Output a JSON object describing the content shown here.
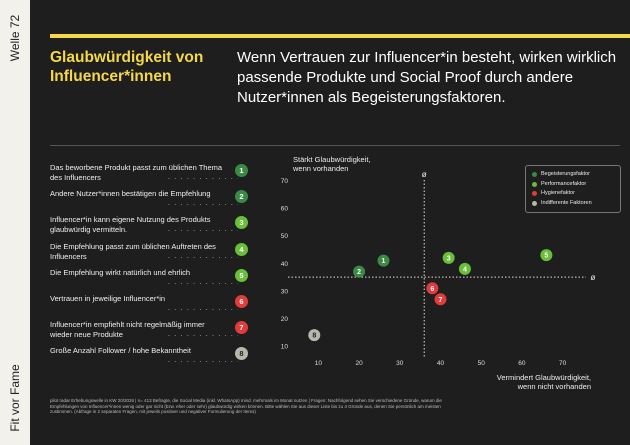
{
  "side": {
    "top_label": "Welle 72",
    "bottom_label": "Fit vor Fame"
  },
  "header": {
    "title": "Glaubwürdigkeit von Influencer*innen",
    "headline": "Wenn Vertrauen zur Influencer*in besteht, wirken wirklich passende Produkte und Social Proof durch andere Nutzer*innen als Begeisterungsfaktoren."
  },
  "colors": {
    "background": "#1e1e1e",
    "accent": "#f5d84a",
    "Begeisterungsfaktor": "#3a8a45",
    "Performancefaktor": "#6abf3a",
    "Hygienefaktor": "#e23b3b",
    "Indifferente Faktoren": "#b5b8ac"
  },
  "factors": [
    {
      "num": "1",
      "text": "Das beworbene Produkt passt zum üblichen Thema des Influencers",
      "category": "Begeisterungsfaktor"
    },
    {
      "num": "2",
      "text": "Andere Nutzer*innen bestätigen die Empfehlung",
      "category": "Begeisterungsfaktor"
    },
    {
      "num": "3",
      "text": "Influencer*in kann eigene Nutzung des Produkts glaubwürdig vermitteln.",
      "category": "Performancefaktor"
    },
    {
      "num": "4",
      "text": "Die Empfehlung passt zum üblichen Auftreten des Influencers",
      "category": "Performancefaktor"
    },
    {
      "num": "5",
      "text": "Die Empfehlung wirkt natürlich und ehrlich",
      "category": "Performancefaktor"
    },
    {
      "num": "6",
      "text": "Vertrauen in jeweilige Influencer*in",
      "category": "Hygienefaktor"
    },
    {
      "num": "7",
      "text": "Influencer*in empfiehlt nicht regelmäßig immer wieder neue Produkte",
      "category": "Hygienefaktor"
    },
    {
      "num": "8",
      "text": "Große Anzahl Follower / hohe Bekanntheit",
      "category": "Indifferente Faktoren"
    }
  ],
  "chart_data": {
    "type": "scatter",
    "ylabel": "Stärkt Glaubwürdigkeit, wenn vorhanden",
    "xlabel": "Vermindert Glaubwürdigkeit, wenn nicht vorhanden",
    "xlim": [
      5,
      75
    ],
    "ylim": [
      5,
      72
    ],
    "xticks": [
      10,
      20,
      30,
      40,
      50,
      60,
      70
    ],
    "yticks": [
      10,
      20,
      30,
      40,
      50,
      60,
      70
    ],
    "avg_x": 36,
    "avg_y": 35,
    "avg_label": "ø",
    "grid": false,
    "legend_position": "top-right",
    "legend": [
      "Begeisterungsfaktor",
      "Performancefaktor",
      "Hygienefaktor",
      "Indifferente Faktoren"
    ],
    "points": [
      {
        "label": "1",
        "x": 26,
        "y": 41,
        "category": "Begeisterungsfaktor"
      },
      {
        "label": "2",
        "x": 20,
        "y": 37,
        "category": "Begeisterungsfaktor"
      },
      {
        "label": "3",
        "x": 42,
        "y": 42,
        "category": "Performancefaktor"
      },
      {
        "label": "4",
        "x": 46,
        "y": 38,
        "category": "Performancefaktor"
      },
      {
        "label": "5",
        "x": 66,
        "y": 43,
        "category": "Performancefaktor"
      },
      {
        "label": "6",
        "x": 38,
        "y": 31,
        "category": "Hygienefaktor"
      },
      {
        "label": "7",
        "x": 40,
        "y": 27,
        "category": "Hygienefaktor"
      },
      {
        "label": "8",
        "x": 9,
        "y": 14,
        "category": "Indifferente Faktoren"
      }
    ]
  },
  "footnote": "pilot radar Erhebungswelle in KW 20/2026 | n= 413 Befragte, die Social Media (inkl. WhatsApp) mind. mehrmals im Monat nutzen | Fragen: Nachfolgend sehen Sie verschiedene Gründe, warum die Empfehlungen von Influencer*innen wenig oder gar nicht (bzw. eher oder sehr) glaubwürdig wirken können. Bitte wählen Sie aus dieser Liste bis zu 4 Gründe aus, denen Sie persönlich am meisten zustimmen. (Abfrage in 2 separaten Fragen, mit jeweils positiver und negativer Formulierung der Items)"
}
